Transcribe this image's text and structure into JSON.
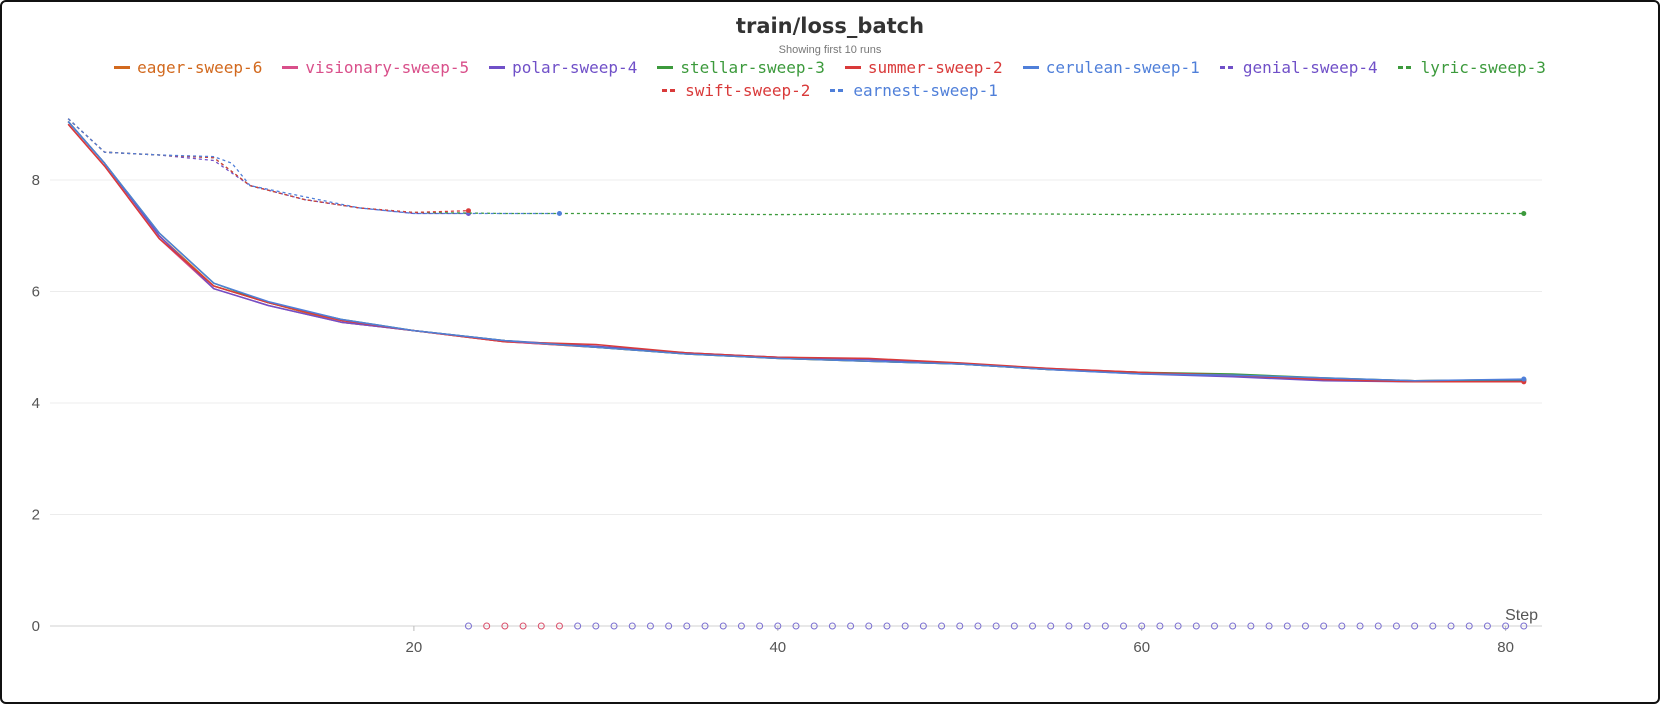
{
  "title": "train/loss_batch",
  "subtitle": "Showing first 10 runs",
  "chart_data": {
    "type": "line",
    "title": "train/loss_batch",
    "subtitle": "Showing first 10 runs",
    "xlabel": "Step",
    "ylabel": "",
    "xlim": [
      0,
      82
    ],
    "ylim": [
      0,
      9.4
    ],
    "x_ticks": [
      20,
      40,
      60,
      80
    ],
    "y_ticks": [
      0,
      2,
      4,
      6,
      8
    ],
    "grid": true,
    "legend_position": "top",
    "series": [
      {
        "name": "eager-sweep-6",
        "color": "#d2691e",
        "dash": false,
        "x": [
          1,
          3,
          6,
          9,
          12,
          16,
          20,
          25,
          30,
          35,
          40,
          45,
          50,
          55,
          60,
          65,
          70,
          75,
          81
        ],
        "values": [
          9.05,
          8.3,
          7.0,
          6.1,
          5.8,
          5.45,
          5.3,
          5.1,
          5.0,
          4.88,
          4.8,
          4.75,
          4.7,
          4.6,
          4.55,
          4.48,
          4.42,
          4.4,
          4.42
        ]
      },
      {
        "name": "visionary-sweep-5",
        "color": "#d94f8a",
        "dash": false,
        "x": [
          1,
          3,
          6,
          9,
          12,
          16,
          20,
          25,
          30,
          35,
          40,
          45,
          50,
          55,
          60,
          65,
          70,
          75,
          81
        ],
        "values": [
          9.0,
          8.25,
          6.95,
          6.05,
          5.75,
          5.45,
          5.3,
          5.1,
          5.0,
          4.9,
          4.82,
          4.78,
          4.7,
          4.62,
          4.55,
          4.5,
          4.44,
          4.4,
          4.4
        ]
      },
      {
        "name": "polar-sweep-4",
        "color": "#7050c8",
        "dash": false,
        "x": [
          1,
          3,
          6,
          9,
          12,
          16,
          20,
          25,
          30,
          35,
          40,
          45,
          50,
          55,
          60,
          65,
          70,
          75,
          81
        ],
        "values": [
          9.05,
          8.3,
          7.0,
          6.05,
          5.75,
          5.45,
          5.3,
          5.12,
          5.02,
          4.9,
          4.82,
          4.78,
          4.7,
          4.6,
          4.52,
          4.47,
          4.4,
          4.38,
          4.4
        ]
      },
      {
        "name": "stellar-sweep-3",
        "color": "#3c9a3c",
        "dash": false,
        "x": [
          1,
          3,
          6,
          9,
          12,
          16,
          20,
          25,
          30,
          35,
          40,
          45,
          50,
          55,
          60,
          65,
          70,
          75,
          81
        ],
        "values": [
          9.05,
          8.3,
          7.05,
          6.15,
          5.8,
          5.5,
          5.3,
          5.12,
          5.0,
          4.88,
          4.8,
          4.75,
          4.7,
          4.6,
          4.55,
          4.52,
          4.45,
          4.4,
          4.42
        ]
      },
      {
        "name": "summer-sweep-2",
        "color": "#d93a3a",
        "dash": false,
        "x": [
          1,
          3,
          6,
          9,
          12,
          16,
          20,
          25,
          30,
          35,
          40,
          45,
          50,
          55,
          60,
          65,
          70,
          75,
          81
        ],
        "values": [
          9.0,
          8.25,
          6.95,
          6.1,
          5.8,
          5.48,
          5.3,
          5.1,
          5.05,
          4.9,
          4.82,
          4.8,
          4.72,
          4.62,
          4.55,
          4.5,
          4.42,
          4.38,
          4.38
        ]
      },
      {
        "name": "cerulean-sweep-1",
        "color": "#4f7fd9",
        "dash": false,
        "x": [
          1,
          3,
          6,
          9,
          12,
          16,
          20,
          25,
          30,
          35,
          40,
          45,
          50,
          55,
          60,
          65,
          70,
          75,
          81
        ],
        "values": [
          9.05,
          8.3,
          7.05,
          6.15,
          5.82,
          5.5,
          5.3,
          5.12,
          5.0,
          4.88,
          4.8,
          4.75,
          4.7,
          4.6,
          4.52,
          4.5,
          4.45,
          4.4,
          4.43
        ]
      },
      {
        "name": "genial-sweep-4",
        "color": "#7050c8",
        "dash": true,
        "x": [
          1,
          3,
          6,
          9,
          11,
          14,
          17,
          20,
          23
        ],
        "values": [
          9.1,
          8.5,
          8.45,
          8.35,
          7.9,
          7.65,
          7.5,
          7.4,
          7.4
        ]
      },
      {
        "name": "lyric-sweep-3",
        "color": "#3c9a3c",
        "dash": true,
        "x": [
          1,
          3,
          6,
          9,
          11,
          14,
          17,
          20,
          25,
          30,
          40,
          50,
          60,
          70,
          81
        ],
        "values": [
          9.1,
          8.5,
          8.45,
          8.4,
          7.9,
          7.65,
          7.5,
          7.42,
          7.4,
          7.4,
          7.38,
          7.4,
          7.38,
          7.4,
          7.4
        ]
      },
      {
        "name": "swift-sweep-2",
        "color": "#d93a3a",
        "dash": true,
        "x": [
          1,
          3,
          6,
          9,
          11,
          14,
          17,
          20,
          23
        ],
        "values": [
          9.1,
          8.5,
          8.45,
          8.4,
          7.9,
          7.65,
          7.5,
          7.42,
          7.45
        ]
      },
      {
        "name": "earnest-sweep-1",
        "color": "#4f7fd9",
        "dash": true,
        "x": [
          1,
          3,
          6,
          9,
          10,
          11,
          14,
          17,
          20,
          25,
          28
        ],
        "values": [
          9.1,
          8.5,
          8.45,
          8.42,
          8.3,
          7.9,
          7.7,
          7.5,
          7.4,
          7.4,
          7.4
        ]
      }
    ]
  }
}
